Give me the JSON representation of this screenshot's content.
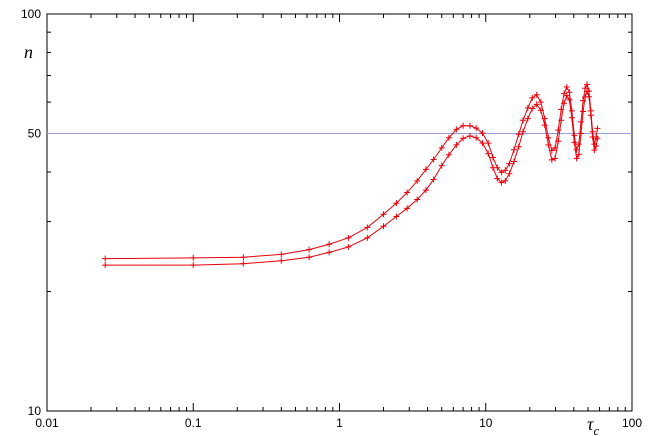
{
  "chart_data": {
    "type": "line",
    "title": "",
    "xlabel": "τ",
    "xlabel_subscript": "c",
    "ylabel": "n",
    "xscale": "log",
    "yscale": "log",
    "xlim": [
      0.01,
      100
    ],
    "ylim": [
      10,
      100
    ],
    "x_ticks": [
      0.01,
      0.1,
      1,
      10,
      100
    ],
    "x_tick_labels": [
      "0.01",
      "0.1",
      "1",
      "10",
      "100"
    ],
    "y_ticks": [
      10,
      50,
      100
    ],
    "y_tick_labels": [
      "10",
      "50",
      "100"
    ],
    "grid": false,
    "colors": {
      "series": "#e8000b",
      "reference": "#9999dd"
    },
    "reference_line": {
      "y": 50
    },
    "series": [
      {
        "points": [
          [
            0.025,
            24.2
          ],
          [
            0.1,
            24.3
          ],
          [
            0.22,
            24.4
          ],
          [
            0.4,
            24.8
          ],
          [
            0.62,
            25.5
          ],
          [
            0.85,
            26.3
          ],
          [
            1.15,
            27.3
          ],
          [
            1.55,
            29.0
          ],
          [
            2.0,
            31.3
          ],
          [
            2.45,
            33.4
          ],
          [
            2.9,
            35.5
          ],
          [
            3.4,
            38.0
          ],
          [
            3.9,
            40.6
          ],
          [
            4.4,
            43.0
          ],
          [
            5.0,
            46.0
          ],
          [
            5.6,
            48.8
          ],
          [
            6.3,
            51.2
          ],
          [
            7.0,
            52.3
          ],
          [
            7.8,
            52.3
          ],
          [
            8.6,
            51.6
          ],
          [
            9.5,
            50.1
          ],
          [
            10.4,
            47.3
          ],
          [
            11.2,
            43.5
          ],
          [
            12.0,
            41.0
          ],
          [
            12.8,
            39.9
          ],
          [
            13.6,
            40.4
          ],
          [
            14.5,
            42.0
          ],
          [
            15.6,
            45.5
          ],
          [
            16.8,
            49.8
          ],
          [
            18.0,
            54.0
          ],
          [
            19.4,
            58.0
          ],
          [
            20.8,
            61.5
          ],
          [
            22.3,
            62.6
          ],
          [
            23.8,
            60.0
          ],
          [
            25.3,
            54.5
          ],
          [
            26.8,
            48.8
          ],
          [
            28.3,
            45.3
          ],
          [
            29.8,
            46.0
          ],
          [
            31.3,
            51.0
          ],
          [
            32.8,
            57.5
          ],
          [
            34.3,
            63.0
          ],
          [
            35.8,
            65.5
          ],
          [
            37.3,
            63.5
          ],
          [
            38.8,
            57.0
          ],
          [
            40.3,
            49.5
          ],
          [
            41.8,
            45.5
          ],
          [
            43.3,
            47.0
          ],
          [
            44.8,
            53.5
          ],
          [
            46.3,
            60.5
          ],
          [
            47.8,
            65.0
          ],
          [
            49.3,
            66.5
          ],
          [
            50.8,
            64.0
          ],
          [
            52.3,
            57.0
          ],
          [
            53.8,
            50.5
          ],
          [
            55.3,
            47.0
          ],
          [
            56.8,
            49.0
          ],
          [
            58.0,
            51.5
          ]
        ]
      },
      {
        "points": [
          [
            0.025,
            23.3
          ],
          [
            0.1,
            23.3
          ],
          [
            0.22,
            23.5
          ],
          [
            0.4,
            23.9
          ],
          [
            0.62,
            24.4
          ],
          [
            0.85,
            25.1
          ],
          [
            1.15,
            25.9
          ],
          [
            1.55,
            27.3
          ],
          [
            2.0,
            29.2
          ],
          [
            2.45,
            30.9
          ],
          [
            2.9,
            32.4
          ],
          [
            3.4,
            34.1
          ],
          [
            3.9,
            36.0
          ],
          [
            4.4,
            38.3
          ],
          [
            5.0,
            41.5
          ],
          [
            5.6,
            44.2
          ],
          [
            6.3,
            46.8
          ],
          [
            7.0,
            48.6
          ],
          [
            7.8,
            49.3
          ],
          [
            8.6,
            48.8
          ],
          [
            9.5,
            47.3
          ],
          [
            10.4,
            44.5
          ],
          [
            11.2,
            41.0
          ],
          [
            12.0,
            38.5
          ],
          [
            12.8,
            37.6
          ],
          [
            13.6,
            38.0
          ],
          [
            14.5,
            39.6
          ],
          [
            15.6,
            42.5
          ],
          [
            16.8,
            46.3
          ],
          [
            18.0,
            50.5
          ],
          [
            19.4,
            54.5
          ],
          [
            20.8,
            57.8
          ],
          [
            22.3,
            59.2
          ],
          [
            23.8,
            57.2
          ],
          [
            25.3,
            52.5
          ],
          [
            26.8,
            46.8
          ],
          [
            28.3,
            42.9
          ],
          [
            29.8,
            43.3
          ],
          [
            31.3,
            47.8
          ],
          [
            32.8,
            54.0
          ],
          [
            34.3,
            59.6
          ],
          [
            35.8,
            62.3
          ],
          [
            37.3,
            60.8
          ],
          [
            38.8,
            54.8
          ],
          [
            40.3,
            47.5
          ],
          [
            41.8,
            43.3
          ],
          [
            43.3,
            44.3
          ],
          [
            44.8,
            50.0
          ],
          [
            46.3,
            56.8
          ],
          [
            47.8,
            61.8
          ],
          [
            49.3,
            63.8
          ],
          [
            50.8,
            61.9
          ],
          [
            52.3,
            55.6
          ],
          [
            53.8,
            49.0
          ],
          [
            55.3,
            45.4
          ],
          [
            56.8,
            46.5
          ],
          [
            58.0,
            48.5
          ]
        ]
      }
    ]
  }
}
